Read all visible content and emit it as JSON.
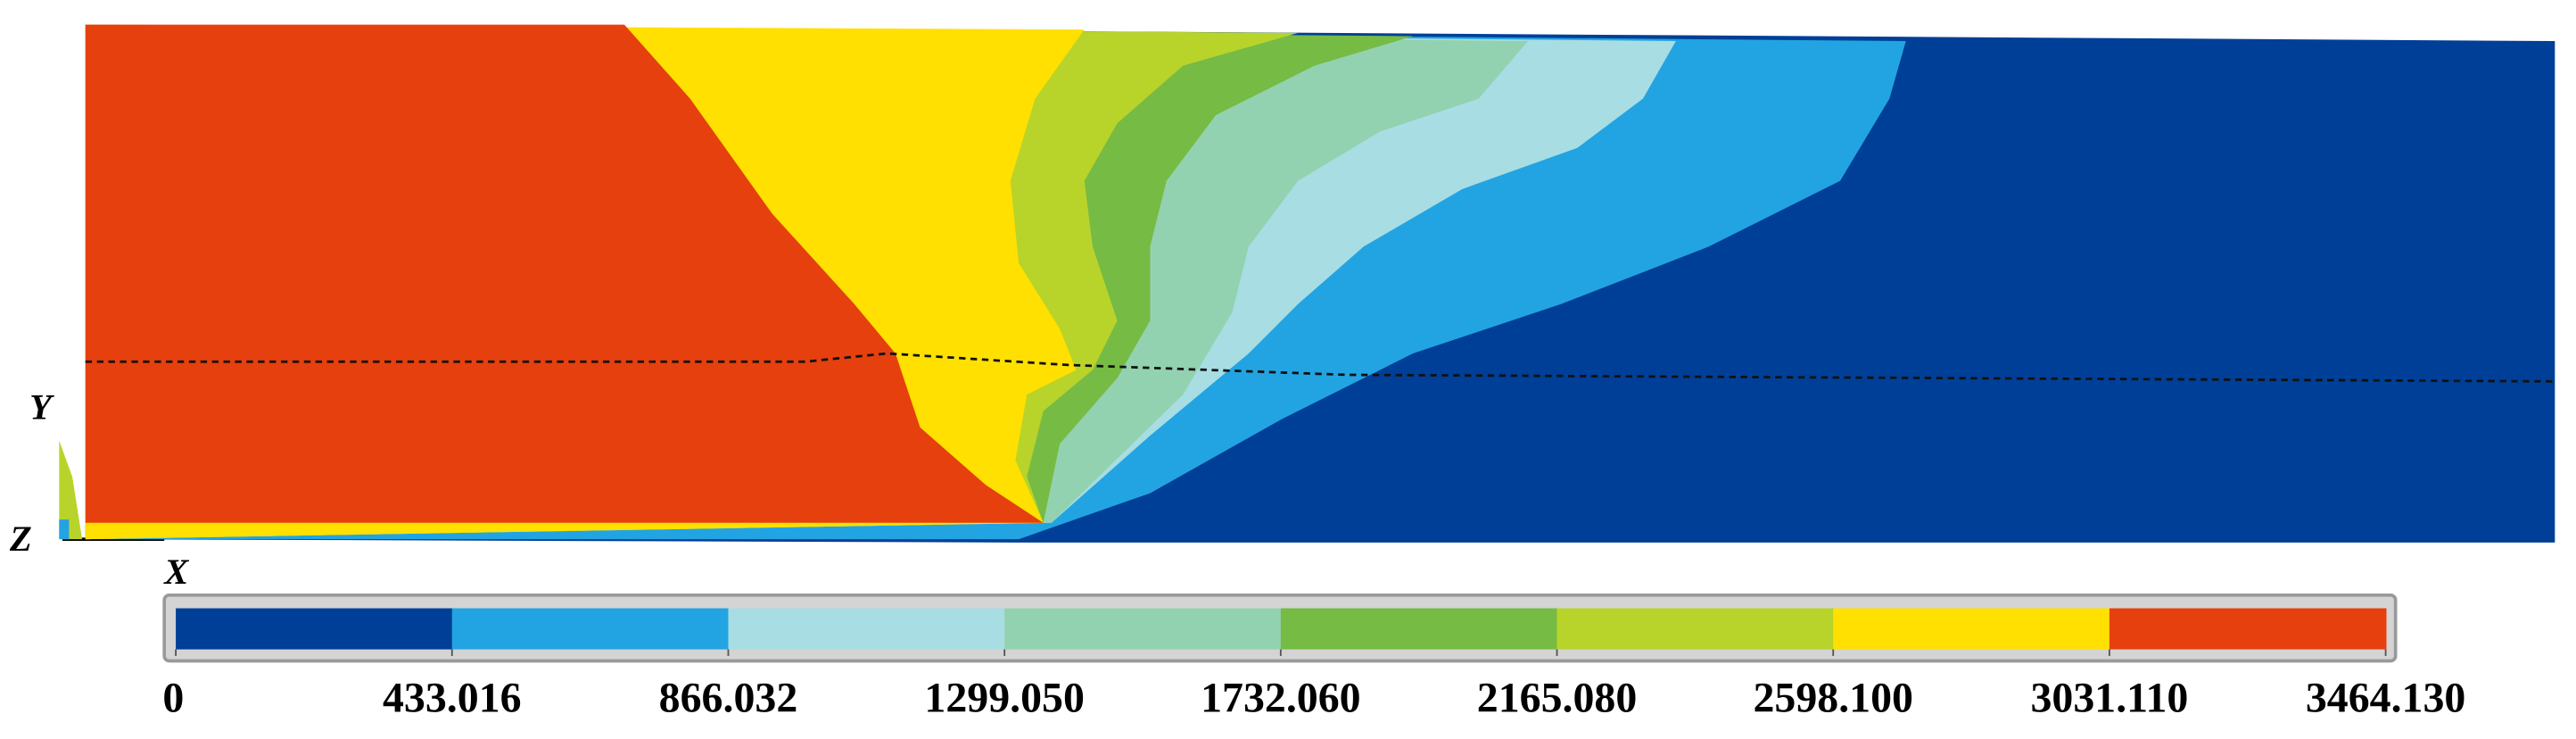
{
  "chart_data": {
    "type": "contour",
    "levels": [
      0,
      433.016,
      866.032,
      {
        "value": 1299.05,
        "label": "1299.050"
      },
      {
        "value": 1732.06,
        "label": "1732.060"
      },
      {
        "value": 2165.08,
        "label": "2165.080"
      },
      {
        "value": 2598.1,
        "label": "2598.100"
      },
      {
        "value": 3031.11,
        "label": "3031.110"
      },
      {
        "value": 3464.13,
        "label": "3464.130"
      }
    ],
    "colors": [
      "#003f97",
      "#22a4e2",
      "#a8dde3",
      "#93d2b0",
      "#76bb44",
      "#b8d42a",
      "#ffe000",
      "#e5400e"
    ],
    "axes": {
      "x": "X",
      "y": "Y",
      "z": "Z"
    }
  }
}
